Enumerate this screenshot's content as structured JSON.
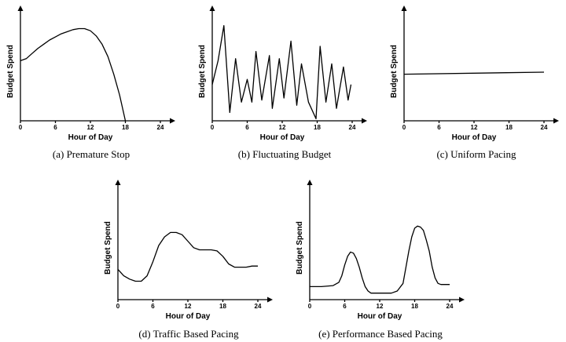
{
  "chart_data": [
    {
      "type": "line",
      "caption": "(a) Premature Stop",
      "xlabel": "Hour of Day",
      "ylabel": "Budget Spend",
      "xlim": [
        0,
        24
      ],
      "xticks": [
        "0",
        "6",
        "12",
        "18",
        "24"
      ],
      "series": [
        {
          "x": [
            0,
            1,
            2,
            3,
            4,
            5,
            6,
            7,
            8,
            9,
            10,
            11,
            12,
            13,
            14,
            15,
            16,
            17,
            18
          ],
          "y": [
            0.58,
            0.6,
            0.65,
            0.7,
            0.74,
            0.78,
            0.81,
            0.84,
            0.86,
            0.88,
            0.89,
            0.89,
            0.87,
            0.82,
            0.74,
            0.62,
            0.45,
            0.25,
            0.0
          ]
        }
      ]
    },
    {
      "type": "line",
      "caption": "(b) Fluctuating Budget",
      "xlabel": "Hour of Day",
      "ylabel": "Budget Spend",
      "xlim": [
        0,
        24
      ],
      "xticks": [
        "0",
        "6",
        "12",
        "18",
        "24"
      ],
      "series": [
        {
          "x": [
            0,
            1,
            2,
            3,
            4,
            5,
            6,
            6.8,
            7.5,
            8.5,
            9.8,
            10.3,
            11.5,
            12.3,
            13.5,
            14.5,
            15.3,
            16.5,
            17.8,
            18.5,
            19.5,
            20.5,
            21.3,
            22.5,
            23.3,
            23.8
          ],
          "y": [
            0.35,
            0.58,
            0.92,
            0.08,
            0.6,
            0.18,
            0.4,
            0.18,
            0.67,
            0.2,
            0.63,
            0.12,
            0.6,
            0.22,
            0.77,
            0.15,
            0.55,
            0.18,
            0.02,
            0.72,
            0.18,
            0.55,
            0.12,
            0.52,
            0.2,
            0.35
          ]
        }
      ]
    },
    {
      "type": "line",
      "caption": "(c) Uniform Pacing",
      "xlabel": "Hour of Day",
      "ylabel": "Budget Spend",
      "xlim": [
        0,
        24
      ],
      "xticks": [
        "0",
        "6",
        "12",
        "18",
        "24"
      ],
      "series": [
        {
          "x": [
            0,
            24
          ],
          "y": [
            0.45,
            0.47
          ]
        }
      ]
    },
    {
      "type": "line",
      "caption": "(d) Traffic Based Pacing",
      "xlabel": "Hour of Day",
      "ylabel": "Budget Spend",
      "xlim": [
        0,
        24
      ],
      "xticks": [
        "0",
        "6",
        "12",
        "18",
        "24"
      ],
      "series": [
        {
          "x": [
            0,
            1,
            2,
            3,
            4,
            5,
            6,
            7,
            8,
            9,
            10,
            11,
            12,
            13,
            14,
            15,
            16,
            17,
            18,
            19,
            20,
            21,
            22,
            23,
            24
          ],
          "y": [
            0.28,
            0.22,
            0.19,
            0.17,
            0.17,
            0.22,
            0.35,
            0.5,
            0.58,
            0.62,
            0.62,
            0.6,
            0.54,
            0.48,
            0.46,
            0.46,
            0.46,
            0.45,
            0.4,
            0.33,
            0.3,
            0.3,
            0.3,
            0.31,
            0.31
          ]
        }
      ]
    },
    {
      "type": "line",
      "caption": "(e) Performance Based Pacing",
      "xlabel": "Hour of Day",
      "ylabel": "Budget Spend",
      "xlim": [
        0,
        24
      ],
      "xticks": [
        "0",
        "6",
        "12",
        "18",
        "24"
      ],
      "series": [
        {
          "x": [
            0,
            2,
            4,
            5,
            5.5,
            6,
            6.5,
            7,
            7.5,
            8,
            8.5,
            9,
            9.5,
            10,
            10.5,
            11,
            12,
            14,
            15,
            16,
            16.5,
            17,
            17.5,
            18,
            18.5,
            19,
            19.5,
            20,
            20.5,
            21,
            21.5,
            22,
            22.5,
            23,
            24
          ],
          "y": [
            0.12,
            0.12,
            0.13,
            0.16,
            0.22,
            0.32,
            0.4,
            0.44,
            0.43,
            0.38,
            0.3,
            0.2,
            0.12,
            0.08,
            0.06,
            0.06,
            0.06,
            0.06,
            0.08,
            0.15,
            0.3,
            0.45,
            0.58,
            0.66,
            0.68,
            0.67,
            0.64,
            0.55,
            0.45,
            0.3,
            0.2,
            0.15,
            0.14,
            0.14,
            0.14
          ]
        }
      ]
    }
  ]
}
